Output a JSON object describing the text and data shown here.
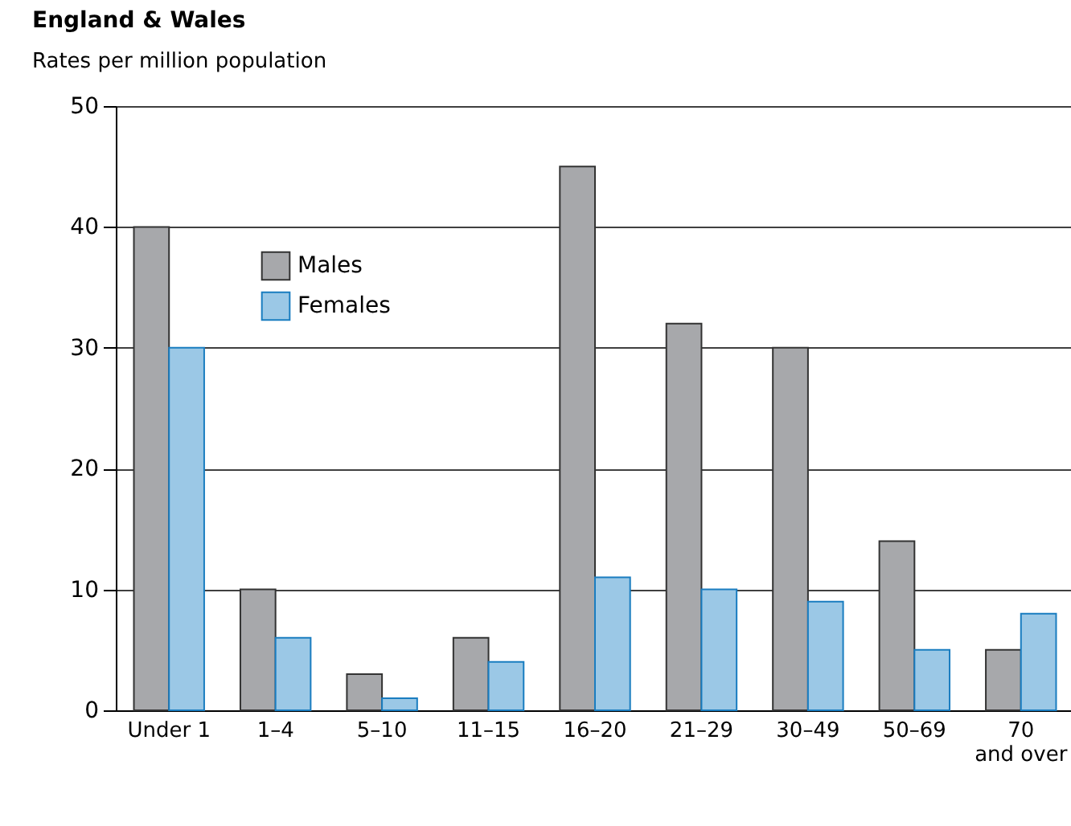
{
  "chart_data": {
    "type": "bar",
    "title": "England & Wales",
    "subtitle": "Rates per million population",
    "categories": [
      "Under 1",
      "1–4",
      "5–10",
      "11–15",
      "16–20",
      "21–29",
      "30–49",
      "50–69",
      "70 and over"
    ],
    "series": [
      {
        "name": "Males",
        "color": "#a7a8ab",
        "values": [
          40,
          10,
          3,
          6,
          45,
          32,
          30,
          14,
          5
        ]
      },
      {
        "name": "Females",
        "color": "#9bc8e6",
        "values": [
          30,
          6,
          1,
          4,
          11,
          10,
          9,
          5,
          8
        ]
      }
    ],
    "ylim": [
      0,
      50
    ],
    "yticks": [
      0,
      10,
      20,
      30,
      40,
      50
    ],
    "grid": "y",
    "legend": "top left"
  }
}
